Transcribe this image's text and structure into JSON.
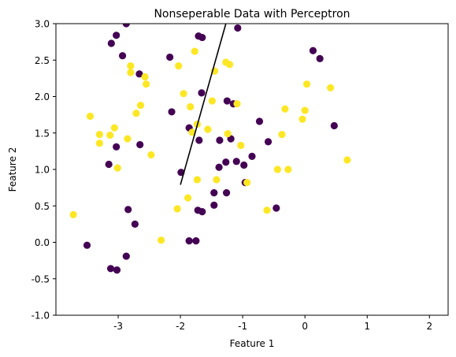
{
  "chart_data": {
    "type": "scatter",
    "title": "Nonseperable Data with Perceptron",
    "xlabel": "Feature 1",
    "ylabel": "Feature 2",
    "xlim": [
      -4.0,
      2.3
    ],
    "ylim": [
      -1.0,
      3.0
    ],
    "xticks": [
      "-3",
      "-2",
      "-1",
      "0",
      "1",
      "2"
    ],
    "xtick_values": [
      -3,
      -2,
      -1,
      0,
      1,
      2
    ],
    "yticks": [
      "-1.0",
      "-0.5",
      "0.0",
      "0.5",
      "1.0",
      "1.5",
      "2.0",
      "2.5",
      "3.0"
    ],
    "ytick_values": [
      -1.0,
      -0.5,
      0.0,
      0.5,
      1.0,
      1.5,
      2.0,
      2.5,
      3.0
    ],
    "grid": false,
    "legend": "none",
    "colors": {
      "class_0": "#440154",
      "class_1": "#fde725",
      "line": "#000000"
    },
    "series": [
      {
        "class": 0,
        "points": [
          [
            -3.5,
            -0.04
          ],
          [
            -3.12,
            -0.36
          ],
          [
            -3.02,
            -0.38
          ],
          [
            -2.87,
            -0.19
          ],
          [
            -2.84,
            0.45
          ],
          [
            -2.73,
            0.25
          ],
          [
            -3.15,
            1.07
          ],
          [
            -3.03,
            1.31
          ],
          [
            -2.65,
            1.34
          ],
          [
            -3.11,
            2.73
          ],
          [
            -3.03,
            2.84
          ],
          [
            -2.93,
            2.56
          ],
          [
            -2.87,
            3.0
          ],
          [
            -2.66,
            2.31
          ],
          [
            -2.17,
            2.54
          ],
          [
            -2.14,
            1.79
          ],
          [
            -1.99,
            0.96
          ],
          [
            -1.86,
            1.57
          ],
          [
            -1.86,
            0.02
          ],
          [
            -1.75,
            0.02
          ],
          [
            -1.72,
            0.44
          ],
          [
            -1.65,
            0.42
          ],
          [
            -1.7,
            1.4
          ],
          [
            -1.66,
            2.05
          ],
          [
            -1.71,
            2.83
          ],
          [
            -1.65,
            2.81
          ],
          [
            -1.46,
            0.51
          ],
          [
            -1.46,
            0.68
          ],
          [
            -1.38,
            1.03
          ],
          [
            -1.37,
            1.4
          ],
          [
            -1.27,
            1.1
          ],
          [
            -1.26,
            0.68
          ],
          [
            -1.25,
            1.94
          ],
          [
            -1.19,
            1.42
          ],
          [
            -1.15,
            1.9
          ],
          [
            -1.1,
            1.11
          ],
          [
            -1.08,
            2.94
          ],
          [
            -0.98,
            1.06
          ],
          [
            -0.96,
            0.82
          ],
          [
            -0.85,
            1.18
          ],
          [
            -0.73,
            1.66
          ],
          [
            -0.59,
            1.38
          ],
          [
            -0.46,
            0.47
          ],
          [
            0.13,
            2.63
          ],
          [
            0.24,
            2.52
          ],
          [
            0.47,
            1.6
          ]
        ]
      },
      {
        "class": 1,
        "points": [
          [
            -3.72,
            0.38
          ],
          [
            -3.45,
            1.73
          ],
          [
            -3.3,
            1.48
          ],
          [
            -3.3,
            1.36
          ],
          [
            -3.13,
            1.47
          ],
          [
            -3.06,
            1.57
          ],
          [
            -3.01,
            1.02
          ],
          [
            -2.85,
            1.42
          ],
          [
            -2.8,
            2.42
          ],
          [
            -2.8,
            2.33
          ],
          [
            -2.71,
            1.77
          ],
          [
            -2.64,
            1.88
          ],
          [
            -2.57,
            2.27
          ],
          [
            -2.55,
            2.17
          ],
          [
            -2.47,
            1.2
          ],
          [
            -2.31,
            0.03
          ],
          [
            -2.05,
            0.46
          ],
          [
            -2.03,
            2.42
          ],
          [
            -1.95,
            2.04
          ],
          [
            -1.88,
            0.61
          ],
          [
            -1.84,
            1.86
          ],
          [
            -1.81,
            1.51
          ],
          [
            -1.73,
            1.62
          ],
          [
            -1.73,
            0.86
          ],
          [
            -1.77,
            2.62
          ],
          [
            -1.56,
            1.55
          ],
          [
            -1.49,
            1.94
          ],
          [
            -1.45,
            2.35
          ],
          [
            -1.42,
            0.86
          ],
          [
            -1.27,
            2.47
          ],
          [
            -1.21,
            2.44
          ],
          [
            -1.24,
            1.49
          ],
          [
            -1.09,
            1.9
          ],
          [
            -1.03,
            1.33
          ],
          [
            -0.93,
            0.82
          ],
          [
            -0.61,
            0.44
          ],
          [
            -0.44,
            1.0
          ],
          [
            -0.27,
            1.0
          ],
          [
            -0.37,
            1.48
          ],
          [
            -0.32,
            1.83
          ],
          [
            -0.04,
            1.69
          ],
          [
            0.0,
            1.81
          ],
          [
            0.03,
            2.17
          ],
          [
            0.41,
            2.12
          ],
          [
            0.68,
            1.13
          ]
        ]
      }
    ],
    "decision_line": {
      "x": [
        -2.0,
        -1.27
      ],
      "y": [
        0.79,
        3.0
      ]
    }
  }
}
